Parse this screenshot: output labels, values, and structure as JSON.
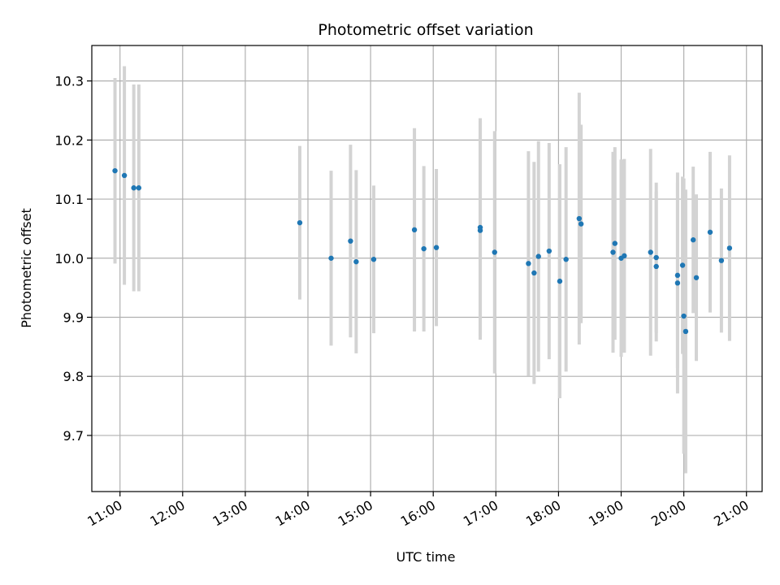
{
  "chart_data": {
    "type": "scatter",
    "title": "Photometric offset variation",
    "xlabel": "UTC time",
    "ylabel": "Photometric offset",
    "x_unit": "hours",
    "xlim": [
      10.55,
      21.25
    ],
    "ylim": [
      9.605,
      10.36
    ],
    "x_ticks": [
      {
        "value": 11,
        "label": "11:00"
      },
      {
        "value": 12,
        "label": "12:00"
      },
      {
        "value": 13,
        "label": "13:00"
      },
      {
        "value": 14,
        "label": "14:00"
      },
      {
        "value": 15,
        "label": "15:00"
      },
      {
        "value": 16,
        "label": "16:00"
      },
      {
        "value": 17,
        "label": "17:00"
      },
      {
        "value": 18,
        "label": "18:00"
      },
      {
        "value": 19,
        "label": "19:00"
      },
      {
        "value": 20,
        "label": "20:00"
      },
      {
        "value": 21,
        "label": "21:00"
      }
    ],
    "y_ticks": [
      {
        "value": 9.7,
        "label": "9.7"
      },
      {
        "value": 9.8,
        "label": "9.8"
      },
      {
        "value": 9.9,
        "label": "9.9"
      },
      {
        "value": 10.0,
        "label": "10.0"
      },
      {
        "value": 10.1,
        "label": "10.1"
      },
      {
        "value": 10.2,
        "label": "10.2"
      },
      {
        "value": 10.3,
        "label": "10.3"
      }
    ],
    "grid": true,
    "colors": {
      "point": "#1f77b4",
      "errorbar": "#d3d3d3",
      "grid": "#b0b0b0"
    },
    "points": [
      {
        "x": 10.92,
        "y": 10.148,
        "yerr": 0.157
      },
      {
        "x": 11.07,
        "y": 10.14,
        "yerr": 0.185
      },
      {
        "x": 11.22,
        "y": 10.119,
        "yerr": 0.175
      },
      {
        "x": 11.3,
        "y": 10.119,
        "yerr": 0.175
      },
      {
        "x": 13.87,
        "y": 10.06,
        "yerr": 0.13
      },
      {
        "x": 14.37,
        "y": 10.0,
        "yerr": 0.148
      },
      {
        "x": 14.68,
        "y": 10.029,
        "yerr": 0.163
      },
      {
        "x": 14.77,
        "y": 9.994,
        "yerr": 0.155
      },
      {
        "x": 15.05,
        "y": 9.998,
        "yerr": 0.125
      },
      {
        "x": 15.7,
        "y": 10.048,
        "yerr": 0.172
      },
      {
        "x": 15.85,
        "y": 10.016,
        "yerr": 0.14
      },
      {
        "x": 16.05,
        "y": 10.018,
        "yerr": 0.133
      },
      {
        "x": 16.75,
        "y": 10.052,
        "yerr": 0.185
      },
      {
        "x": 16.75,
        "y": 10.047,
        "yerr": 0.185
      },
      {
        "x": 16.98,
        "y": 10.01,
        "yerr": 0.205
      },
      {
        "x": 17.52,
        "y": 9.991,
        "yerr": 0.19
      },
      {
        "x": 17.61,
        "y": 9.975,
        "yerr": 0.188
      },
      {
        "x": 17.68,
        "y": 10.003,
        "yerr": 0.195
      },
      {
        "x": 17.85,
        "y": 10.012,
        "yerr": 0.183
      },
      {
        "x": 18.02,
        "y": 9.961,
        "yerr": 0.198
      },
      {
        "x": 18.12,
        "y": 9.998,
        "yerr": 0.19
      },
      {
        "x": 18.33,
        "y": 10.067,
        "yerr": 0.213
      },
      {
        "x": 18.36,
        "y": 10.058,
        "yerr": 0.168
      },
      {
        "x": 18.87,
        "y": 10.01,
        "yerr": 0.17
      },
      {
        "x": 18.9,
        "y": 10.025,
        "yerr": 0.163
      },
      {
        "x": 19.0,
        "y": 10.0,
        "yerr": 0.167
      },
      {
        "x": 19.05,
        "y": 10.004,
        "yerr": 0.164
      },
      {
        "x": 19.47,
        "y": 10.01,
        "yerr": 0.175
      },
      {
        "x": 19.56,
        "y": 10.001,
        "yerr": 0.127
      },
      {
        "x": 19.56,
        "y": 9.986,
        "yerr": 0.127
      },
      {
        "x": 19.9,
        "y": 9.958,
        "yerr": 0.187
      },
      {
        "x": 19.9,
        "y": 9.971,
        "yerr": 0.157
      },
      {
        "x": 19.98,
        "y": 9.988,
        "yerr": 0.15
      },
      {
        "x": 20.0,
        "y": 9.902,
        "yerr": 0.233
      },
      {
        "x": 20.03,
        "y": 9.876,
        "yerr": 0.24
      },
      {
        "x": 20.15,
        "y": 10.031,
        "yerr": 0.124
      },
      {
        "x": 20.2,
        "y": 9.967,
        "yerr": 0.141
      },
      {
        "x": 20.42,
        "y": 10.044,
        "yerr": 0.136
      },
      {
        "x": 20.6,
        "y": 9.996,
        "yerr": 0.122
      },
      {
        "x": 20.73,
        "y": 10.017,
        "yerr": 0.157
      }
    ]
  }
}
